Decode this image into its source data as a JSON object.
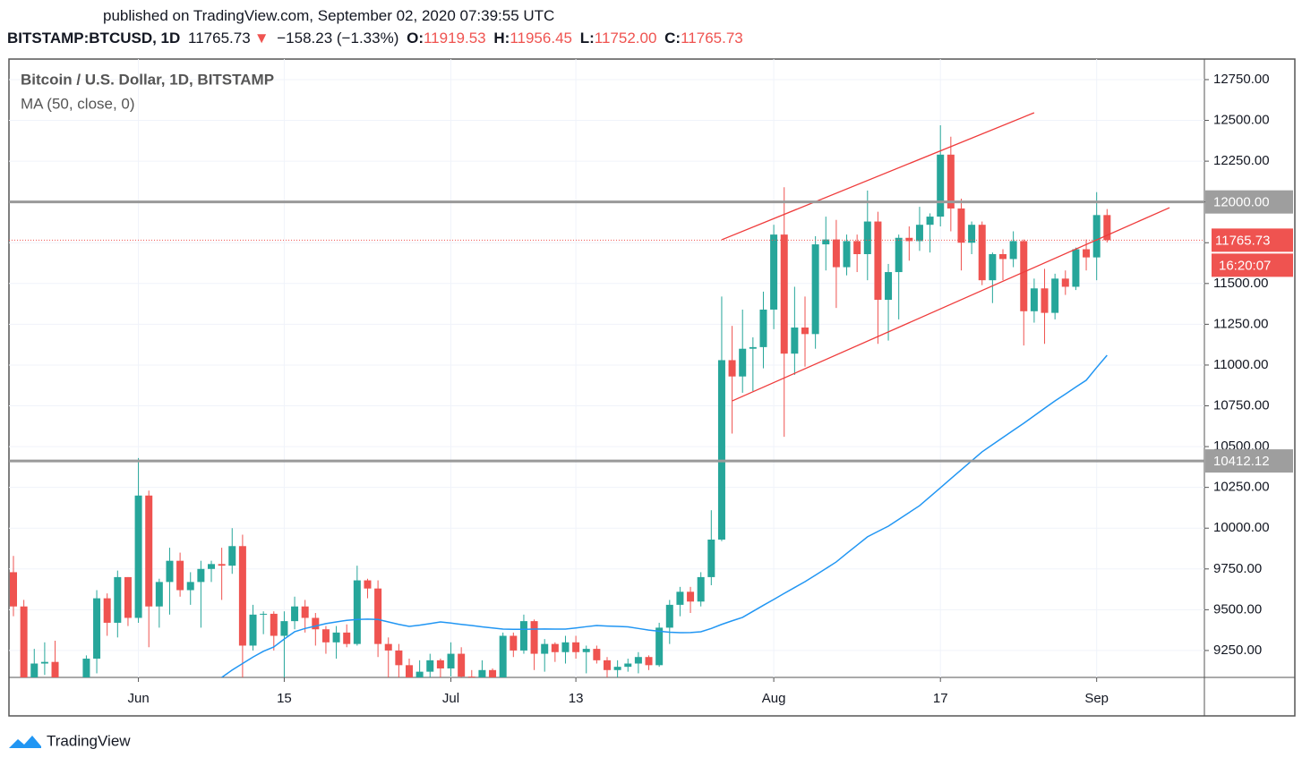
{
  "header": {
    "published": "published on TradingView.com, September 02, 2020 07:39:55 UTC",
    "symbol": "BITSTAMP:BTCUSD, 1D",
    "last": "11765.73",
    "arrow": "▼",
    "change": "−158.23 (−1.33%)",
    "o_label": "O:",
    "o": "11919.53",
    "h_label": "H:",
    "h": "11956.45",
    "l_label": "L:",
    "l": "11752.00",
    "c_label": "C:",
    "c": "11765.73"
  },
  "chart_data": {
    "type": "candlestick",
    "title": "Bitcoin / U.S. Dollar, 1D, BITSTAMP",
    "x": [
      "2020-05-20",
      "2020-05-21",
      "2020-05-22",
      "2020-05-23",
      "2020-05-24",
      "2020-05-25",
      "2020-05-26",
      "2020-05-27",
      "2020-05-28",
      "2020-05-29",
      "2020-05-30",
      "2020-05-31",
      "2020-06-01",
      "2020-06-02",
      "2020-06-03",
      "2020-06-04",
      "2020-06-05",
      "2020-06-06",
      "2020-06-07",
      "2020-06-08",
      "2020-06-09",
      "2020-06-10",
      "2020-06-11",
      "2020-06-12",
      "2020-06-13",
      "2020-06-14",
      "2020-06-15",
      "2020-06-16",
      "2020-06-17",
      "2020-06-18",
      "2020-06-19",
      "2020-06-20",
      "2020-06-21",
      "2020-06-22",
      "2020-06-23",
      "2020-06-24",
      "2020-06-25",
      "2020-06-26",
      "2020-06-27",
      "2020-06-28",
      "2020-06-29",
      "2020-06-30",
      "2020-07-01",
      "2020-07-02",
      "2020-07-03",
      "2020-07-04",
      "2020-07-05",
      "2020-07-06",
      "2020-07-07",
      "2020-07-08",
      "2020-07-09",
      "2020-07-10",
      "2020-07-11",
      "2020-07-12",
      "2020-07-13",
      "2020-07-14",
      "2020-07-15",
      "2020-07-16",
      "2020-07-17",
      "2020-07-18",
      "2020-07-19",
      "2020-07-20",
      "2020-07-21",
      "2020-07-22",
      "2020-07-23",
      "2020-07-24",
      "2020-07-25",
      "2020-07-26",
      "2020-07-27",
      "2020-07-28",
      "2020-07-29",
      "2020-07-30",
      "2020-07-31",
      "2020-08-01",
      "2020-08-02",
      "2020-08-03",
      "2020-08-04",
      "2020-08-05",
      "2020-08-06",
      "2020-08-07",
      "2020-08-08",
      "2020-08-09",
      "2020-08-10",
      "2020-08-11",
      "2020-08-12",
      "2020-08-13",
      "2020-08-14",
      "2020-08-15",
      "2020-08-16",
      "2020-08-17",
      "2020-08-18",
      "2020-08-19",
      "2020-08-20",
      "2020-08-21",
      "2020-08-22",
      "2020-08-23",
      "2020-08-24",
      "2020-08-25",
      "2020-08-26",
      "2020-08-27",
      "2020-08-28",
      "2020-08-29",
      "2020-08-30",
      "2020-08-31",
      "2020-09-01",
      "2020-09-02"
    ],
    "open": [
      9730,
      9520,
      9070,
      9170,
      9180,
      8730,
      8900,
      8840,
      9200,
      9570,
      9420,
      9700,
      9450,
      10200,
      9520,
      9670,
      9800,
      9620,
      9670,
      9750,
      9780,
      9770,
      9890,
      9280,
      9470,
      9475,
      9340,
      9430,
      9520,
      9450,
      9380,
      9300,
      9360,
      9290,
      9680,
      9630,
      9290,
      9250,
      9160,
      9000,
      9120,
      9190,
      9140,
      9230,
      9090,
      9070,
      9130,
      9080,
      9340,
      9250,
      9430,
      9230,
      9290,
      9240,
      9300,
      9240,
      9260,
      9190,
      9130,
      9150,
      9170,
      9210,
      9160,
      9390,
      9530,
      9610,
      9550,
      9700,
      9930,
      11030,
      10930,
      11100,
      11110,
      11340,
      11800,
      11070,
      11230,
      11190,
      11740,
      11770,
      11600,
      11760,
      11680,
      11880,
      11400,
      11570,
      11780,
      11760,
      11860,
      11910,
      12290,
      11960,
      11750,
      11860,
      11520,
      11680,
      11650,
      11760,
      11330,
      11470,
      11320,
      11530,
      11480,
      11710,
      11660,
      11919.53
    ],
    "high": [
      9830,
      9560,
      9260,
      9300,
      9310,
      8980,
      9010,
      9220,
      9620,
      9600,
      9740,
      9700,
      10430,
      10230,
      9690,
      9880,
      9850,
      9730,
      9800,
      9800,
      9880,
      10000,
      9960,
      9530,
      9490,
      9490,
      9490,
      9580,
      9560,
      9480,
      9400,
      9400,
      9410,
      9770,
      9690,
      9680,
      9330,
      9290,
      9200,
      9190,
      9230,
      9200,
      9300,
      9270,
      9130,
      9190,
      9140,
      9360,
      9360,
      9470,
      9440,
      9320,
      9300,
      9340,
      9340,
      9280,
      9280,
      9210,
      9190,
      9200,
      9240,
      9220,
      9420,
      9560,
      9640,
      9640,
      9730,
      10110,
      11420,
      11240,
      11340,
      11170,
      11450,
      11860,
      12090,
      11480,
      11420,
      11790,
      11910,
      11890,
      11800,
      11800,
      12070,
      11940,
      11620,
      11800,
      11850,
      11970,
      11930,
      12470,
      12400,
      12020,
      11880,
      11880,
      11690,
      11710,
      11820,
      11770,
      11530,
      11590,
      11560,
      11580,
      11720,
      11770,
      12060,
      11956.45
    ],
    "low": [
      9460,
      8830,
      9000,
      9100,
      8700,
      8640,
      8700,
      8810,
      9110,
      9340,
      9330,
      9400,
      9420,
      9270,
      9390,
      9470,
      9580,
      9530,
      9390,
      9670,
      9560,
      9720,
      9080,
      9250,
      9350,
      9250,
      8950,
      9380,
      9360,
      9280,
      9230,
      9200,
      9270,
      9280,
      9570,
      9210,
      9000,
      9040,
      8830,
      8950,
      9030,
      9080,
      9090,
      8940,
      9040,
      9060,
      8920,
      9060,
      9210,
      9230,
      9130,
      9120,
      9180,
      9170,
      9200,
      9110,
      9170,
      9010,
      9080,
      9120,
      9110,
      9130,
      9150,
      9290,
      9460,
      9480,
      9520,
      9650,
      9920,
      10580,
      10830,
      10840,
      10980,
      11220,
      10560,
      10940,
      10990,
      11100,
      11580,
      11350,
      11550,
      11570,
      11520,
      11130,
      11150,
      11280,
      11640,
      11700,
      11690,
      11850,
      11820,
      11580,
      11680,
      11490,
      11380,
      11520,
      11600,
      11120,
      11260,
      11130,
      11280,
      11430,
      11460,
      11580,
      11520,
      11752
    ],
    "close": [
      9520,
      9070,
      9170,
      9180,
      8730,
      8900,
      8840,
      9200,
      9570,
      9420,
      9700,
      9450,
      10200,
      9520,
      9670,
      9800,
      9620,
      9670,
      9750,
      9780,
      9770,
      9890,
      9280,
      9470,
      9475,
      9340,
      9430,
      9520,
      9450,
      9380,
      9300,
      9360,
      9290,
      9680,
      9630,
      9290,
      9250,
      9160,
      9000,
      9120,
      9190,
      9140,
      9230,
      9090,
      9070,
      9130,
      9080,
      9340,
      9250,
      9430,
      9230,
      9290,
      9240,
      9300,
      9240,
      9260,
      9190,
      9130,
      9150,
      9170,
      9210,
      9160,
      9390,
      9530,
      9610,
      9550,
      9700,
      9930,
      11030,
      10930,
      11100,
      11110,
      11340,
      11800,
      11070,
      11230,
      11190,
      11740,
      11770,
      11600,
      11760,
      11680,
      11880,
      11400,
      11570,
      11780,
      11760,
      11860,
      11910,
      12290,
      11960,
      11750,
      11860,
      11520,
      11680,
      11650,
      11760,
      11330,
      11470,
      11320,
      11530,
      11480,
      11710,
      11660,
      11919.53,
      11765.73
    ],
    "up_color": "#26a69a",
    "down_color": "#ef5350",
    "series": [
      {
        "name": "MA (50, close, 0)",
        "color": "#2196f3",
        "values": [
          null,
          null,
          null,
          null,
          null,
          null,
          null,
          null,
          null,
          null,
          null,
          null,
          null,
          null,
          null,
          null,
          null,
          null,
          null,
          null,
          9085,
          9130,
          9170,
          9210,
          9245,
          9272,
          9320,
          9365,
          9385,
          9400,
          9415,
          9425,
          9435,
          9440,
          9442,
          9440,
          9425,
          9410,
          9398,
          9405,
          9415,
          9425,
          9418,
          9410,
          9403,
          9395,
          9388,
          9381,
          9380,
          9380,
          9381,
          9382,
          9381,
          9381,
          9388,
          9396,
          9403,
          9400,
          9398,
          9395,
          9385,
          9375,
          9368,
          9362,
          9359,
          9360,
          9365,
          9385,
          9410,
          9432,
          9453,
          9490,
          9527,
          9563,
          9600,
          9636,
          9672,
          9712,
          9752,
          9793,
          9845,
          9896,
          9947,
          9980,
          10012,
          10054,
          10096,
          10138,
          10193,
          10248,
          10303,
          10358,
          10413,
          10468,
          10512,
          10556,
          10600,
          10643,
          10689,
          10735,
          10780,
          10822,
          10865,
          10907,
          10985,
          11060
        ]
      }
    ],
    "xlim": [
      "2020-05-20",
      "2020-09-11"
    ],
    "xticks": [
      {
        "value": "2020-06-01",
        "label": "Jun"
      },
      {
        "value": "2020-06-15",
        "label": "15"
      },
      {
        "value": "2020-07-01",
        "label": "Jul"
      },
      {
        "value": "2020-07-13",
        "label": "13"
      },
      {
        "value": "2020-08-01",
        "label": "Aug"
      },
      {
        "value": "2020-08-17",
        "label": "17"
      },
      {
        "value": "2020-09-01",
        "label": "Sep"
      }
    ],
    "ylim": [
      9085,
      12876
    ],
    "yticks": [
      {
        "value": 9250,
        "label": "9250.00"
      },
      {
        "value": 9500,
        "label": "9500.00"
      },
      {
        "value": 9750,
        "label": "9750.00"
      },
      {
        "value": 10000,
        "label": "10000.00"
      },
      {
        "value": 10250,
        "label": "10250.00"
      },
      {
        "value": 10500,
        "label": "10500.00"
      },
      {
        "value": 10750,
        "label": "10750.00"
      },
      {
        "value": 11000,
        "label": "11000.00"
      },
      {
        "value": 11250,
        "label": "11250.00"
      },
      {
        "value": 11500,
        "label": "11500.00"
      },
      {
        "value": 11750,
        "label": "11750.00"
      },
      {
        "value": 12000,
        "label": "12000.00"
      },
      {
        "value": 12250,
        "label": "12250.00"
      },
      {
        "value": 12500,
        "label": "12500.00"
      },
      {
        "value": 12750,
        "label": "12750.00"
      }
    ],
    "grid": true,
    "levels": [
      {
        "value": 12000,
        "label": "12000.00"
      },
      {
        "value": 10412.12,
        "label": "10412.12"
      }
    ],
    "last_price": 11765.73,
    "countdown": "16:20:07",
    "trendlines": [
      {
        "x": [
          "2020-07-27",
          "2020-08-26"
        ],
        "y": [
          11768,
          12547
        ]
      },
      {
        "x": [
          "2020-07-28",
          "2020-09-08"
        ],
        "y": [
          10780,
          11965
        ]
      }
    ]
  },
  "footer": {
    "brand": "TradingView"
  }
}
